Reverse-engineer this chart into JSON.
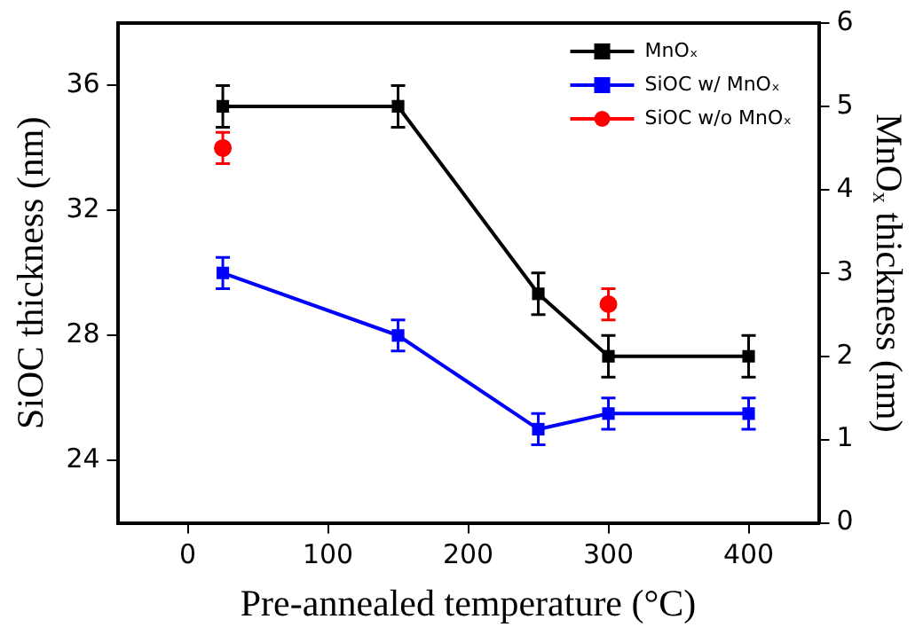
{
  "chart_data": {
    "type": "line",
    "xlabel": "Pre-annealed temperature (°C)",
    "ylabel": "SiOC thickness (nm)",
    "y2label": "MnOₓ thickness (nm)",
    "xlim": [
      -50,
      450
    ],
    "xticks": [
      0,
      100,
      200,
      300,
      400
    ],
    "ylim": [
      22,
      38
    ],
    "yticks": [
      24,
      28,
      32,
      36
    ],
    "y2lim": [
      0,
      6
    ],
    "y2ticks": [
      0,
      1,
      2,
      3,
      4,
      5,
      6
    ],
    "grid": false,
    "legend": "top right",
    "marker": "square",
    "line_style": "solid",
    "series": [
      {
        "name": "MnOₓ",
        "color": "#000000",
        "axis": "y2",
        "x": [
          25,
          150,
          250,
          300,
          400
        ],
        "values": [
          5,
          5,
          2.75,
          2,
          2
        ],
        "errors": [
          0.25,
          0.25,
          0.25,
          0.25,
          0.25
        ]
      },
      {
        "name": "SiOC w/ MnOₓ",
        "color": "#0000ff",
        "x": [
          25,
          150,
          250,
          300,
          400
        ],
        "values": [
          30,
          28,
          25,
          25.5,
          25.5
        ],
        "errors": [
          0.5,
          0.5,
          0.5,
          0.5,
          0.5
        ]
      },
      {
        "name": "SiOC w/o MnOₓ",
        "type": "scatter",
        "marker": "circle",
        "color": "#ff0000",
        "x": [
          25,
          300
        ],
        "values": [
          34,
          29
        ],
        "errors": [
          0.5,
          0.5
        ]
      }
    ]
  }
}
